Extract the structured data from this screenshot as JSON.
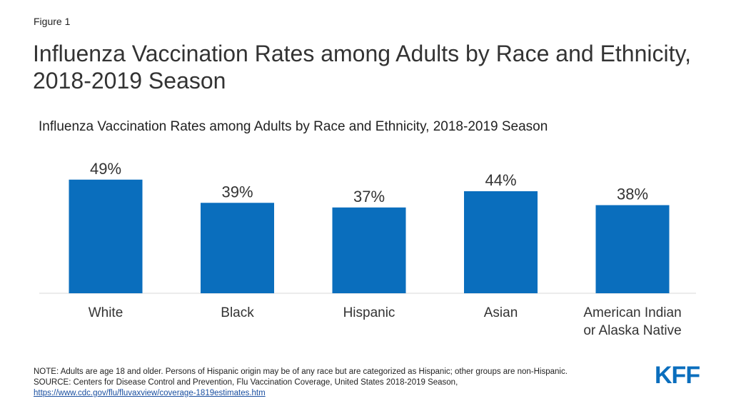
{
  "figure_label": "Figure 1",
  "title": "Influenza Vaccination Rates among Adults by Race and Ethnicity, 2018-2019 Season",
  "chart_data": {
    "type": "bar",
    "title": "Influenza Vaccination Rates among Adults by Race and Ethnicity, 2018-2019 Season",
    "categories": [
      "White",
      "Black",
      "Hispanic",
      "Asian",
      "American Indian or Alaska Native"
    ],
    "values": [
      49,
      39,
      37,
      44,
      38
    ],
    "value_labels": [
      "49%",
      "39%",
      "37%",
      "44%",
      "38%"
    ],
    "unit": "%",
    "ylim": [
      0,
      100
    ],
    "grid": false,
    "legend": "none",
    "bar_color": "#0a6ebd",
    "axis_color": "#d9d9d9"
  },
  "note": "NOTE: Adults are age 18 and older. Persons of Hispanic origin may be of any race but are categorized as Hispanic; other groups are non-Hispanic.",
  "source": "SOURCE: Centers for Disease Control and Prevention, Flu Vaccination Coverage, United States 2018-2019 Season,",
  "source_link": "https://www.cdc.gov/flu/fluvaxview/coverage-1819estimates.htm",
  "logo_text": "KFF",
  "colors": {
    "brand": "#0a6ebd",
    "link": "#1a4fa0"
  }
}
